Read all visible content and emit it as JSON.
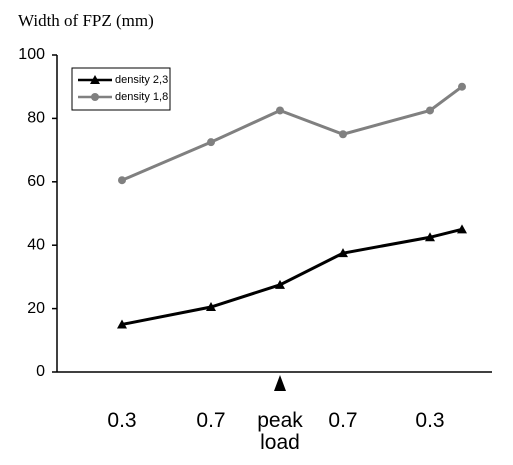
{
  "chart_data": {
    "type": "line",
    "title": "Width of FPZ (mm)",
    "categories": [
      "0.3",
      "0.7",
      "peak load",
      "0.7",
      "0.3",
      null
    ],
    "series": [
      {
        "name": "density 2,3",
        "color": "#000000",
        "marker": "triangle",
        "values": [
          15,
          20.5,
          27.5,
          37.5,
          42.5,
          45
        ]
      },
      {
        "name": "density 1,8",
        "color": "#808080",
        "marker": "circle",
        "values": [
          60.5,
          72.5,
          82.5,
          75,
          82.5,
          90
        ]
      }
    ],
    "ylim": [
      0,
      100
    ],
    "yticks": [
      0,
      20,
      40,
      60,
      80,
      100
    ],
    "grid": false,
    "legend": "upper left"
  }
}
